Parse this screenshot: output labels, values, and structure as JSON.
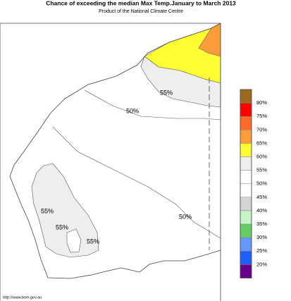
{
  "title": "Chance of exceeding the median Max Temp.January to March 2013",
  "subtitle": "Product of the National Climate Centre",
  "legend": {
    "colors": [
      "#9c6a1e",
      "#ff0000",
      "#ff6a2a",
      "#ff9c3a",
      "#ffff33",
      "#eeeeee",
      "#ffffff",
      "#ffffff",
      "#d4d4d4",
      "#c6f5c6",
      "#66cc66",
      "#6699ff",
      "#1f5fff",
      "#66008c"
    ],
    "labels": [
      "80%",
      "75%",
      "70%",
      "65%",
      "60%",
      "55%",
      "50%",
      "45%",
      "40%",
      "35%",
      "30%",
      "25%",
      "20%"
    ]
  },
  "contour_labels": [
    "55%",
    "50%",
    "55%",
    "55%",
    "55%",
    "50%"
  ],
  "source": "http://www.bom.gov.au"
}
